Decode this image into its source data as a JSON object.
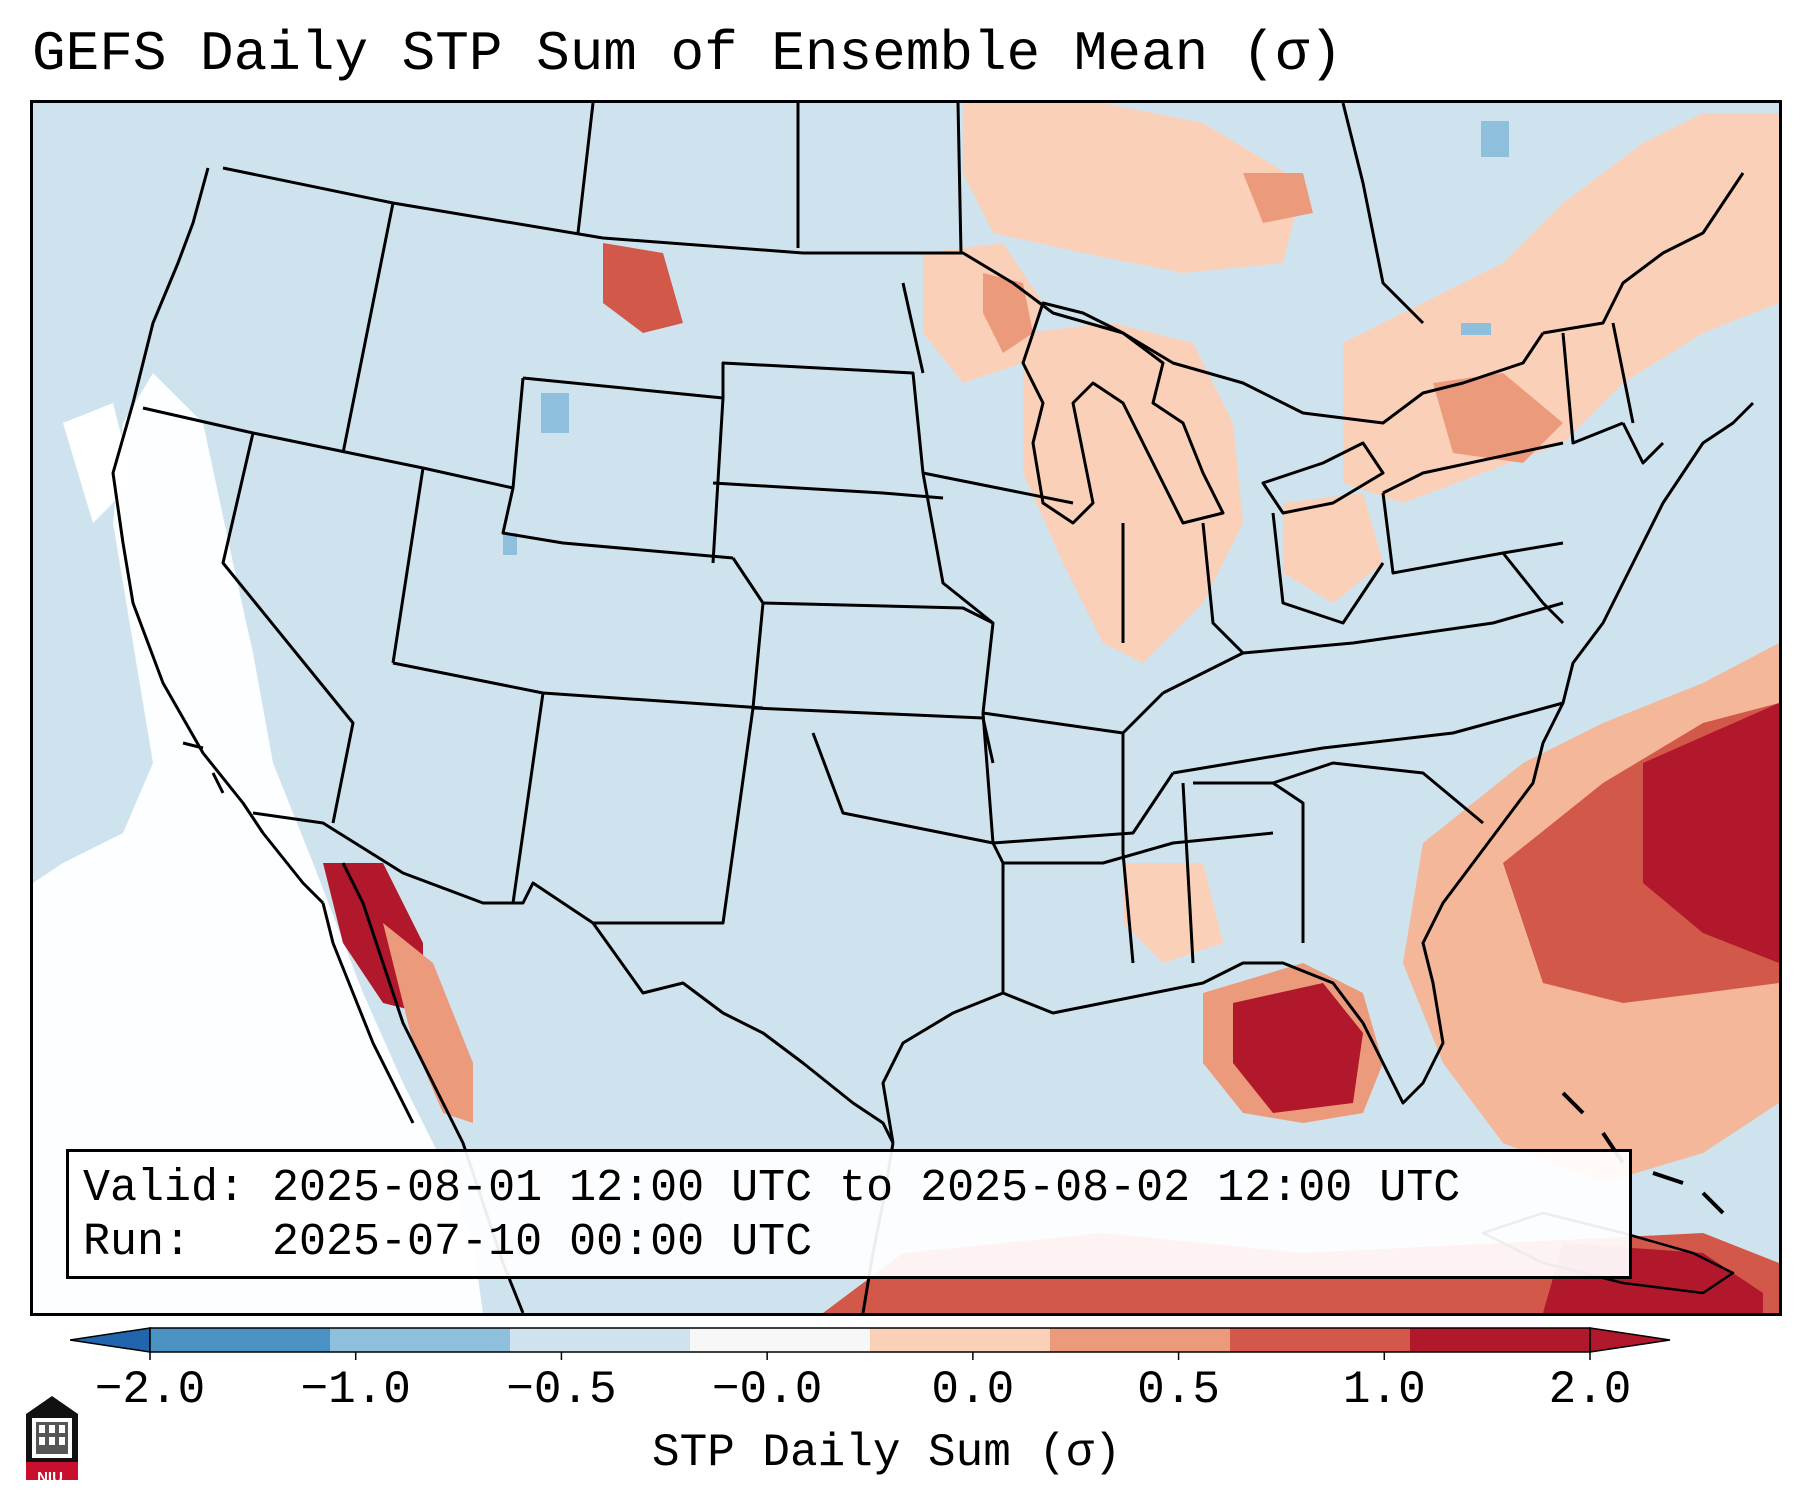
{
  "title": "GEFS Daily STP Sum of Ensemble Mean (σ)",
  "info": {
    "valid_line": "Valid: 2025-08-01 12:00 UTC to 2025-08-02 12:00 UTC",
    "run_line": "Run:   2025-07-10 00:00 UTC"
  },
  "colorbar": {
    "label": "STP Daily Sum (σ)",
    "ticks": [
      "−2.0",
      "−1.0",
      "−0.5",
      "−0.0",
      "0.0",
      "0.5",
      "1.0",
      "2.0"
    ],
    "colors": [
      "#4a91c4",
      "#8ec0de",
      "#cfe3ef",
      "#f7f7f7",
      "#fbd0b9",
      "#ec9a7c",
      "#d25849",
      "#b2182b"
    ],
    "extend_low_color": "#2166ac",
    "extend_high_color": "#b2182b"
  },
  "map": {
    "background_color": "#cfe3ef",
    "features": [
      "coastlines",
      "us-state-borders",
      "canada-province-borders",
      "mexico-borders"
    ]
  },
  "logo": {
    "text": "NIU"
  }
}
